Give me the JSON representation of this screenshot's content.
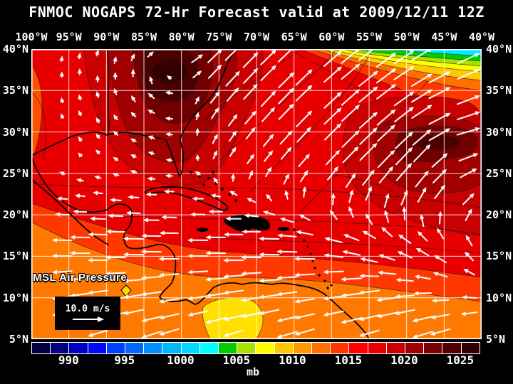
{
  "title": "FNMOC NOGAPS 72-Hr Forecast valid at 2009/12/11 12Z",
  "map": {
    "field_label": "MSL Air Pressure",
    "wind_legend": {
      "label": "10.0 m/s"
    },
    "axes": {
      "top_lon": [
        "100°W",
        "95°W",
        "90°W",
        "85°W",
        "80°W",
        "75°W",
        "70°W",
        "65°W",
        "60°W",
        "55°W",
        "50°W",
        "45°W",
        "40°W"
      ],
      "left_lat": [
        "40°N",
        "35°N",
        "30°N",
        "25°N",
        "20°N",
        "15°N",
        "10°N",
        "5°N"
      ],
      "right_lat": [
        "40°N",
        "35°N",
        "30°N",
        "25°N",
        "20°N",
        "15°N",
        "10°N",
        "5°N"
      ]
    },
    "grid_color": "#ffffff",
    "coastline_color": "#000000",
    "wind_vector_color": "#ffffff"
  },
  "colorbar": {
    "unit": "mb",
    "tick_values": [
      "990",
      "995",
      "1000",
      "1005",
      "1010",
      "1015",
      "1020",
      "1025"
    ],
    "segment_colors": [
      "#000040",
      "#000080",
      "#0000C0",
      "#0008FF",
      "#0040FF",
      "#0068FF",
      "#0090FF",
      "#00B8FF",
      "#00D8FF",
      "#00FFFF",
      "#00CC00",
      "#A8E000",
      "#FFFF00",
      "#FFC800",
      "#FF9800",
      "#FF7000",
      "#FF3800",
      "#FF0000",
      "#E80000",
      "#C80000",
      "#A00000",
      "#780000",
      "#500000",
      "#300000"
    ]
  },
  "chart_data": {
    "type": "heatmap",
    "title": "FNMOC NOGAPS 72-Hr Forecast valid at 2009/12/11 12Z",
    "field": "MSL Air Pressure",
    "unit": "mb",
    "lon_range": [
      "100°W",
      "40°W"
    ],
    "lat_range": [
      "5°N",
      "40°N"
    ],
    "colorbar_ticks": [
      990,
      995,
      1000,
      1005,
      1010,
      1015,
      1020,
      1025
    ],
    "wind_reference_vector": "10.0 m/s",
    "features": [
      {
        "feature": "high-pressure-center",
        "value_mb": 1026,
        "approx_location": "82°W 34°N, southeastern United States / west Atlantic (darkest maroon shading)"
      },
      {
        "feature": "high-pressure-center",
        "value_mb": 1024,
        "approx_location": "45°W 29°N, central subtropical Atlantic (dark maroon shading)"
      },
      {
        "feature": "tight-gradient-to-low",
        "value_mb": 1000,
        "approx_location": "NE corner 55°W-40°W near 40°N: bands orange/yellow/green/cyan toward a low north of the domain, strong SW-NE wind vectors"
      },
      {
        "feature": "low-pressure-area",
        "value_mb": 1007,
        "approx_location": "yellow pocket over Colombia/Panama ~74°W 6°N"
      },
      {
        "feature": "lower-pressure-band",
        "value_mb": 1010,
        "approx_location": "orange band along 5°N-10°N and eastern Pacific southwest corner"
      },
      {
        "feature": "trade-winds",
        "note": "long westward/WSW wind vectors ~10 m/s across Caribbean 5°N-20°N"
      },
      {
        "feature": "station-marker",
        "note": "small yellow diamond near 88°W 11°N (Central America)"
      }
    ]
  }
}
